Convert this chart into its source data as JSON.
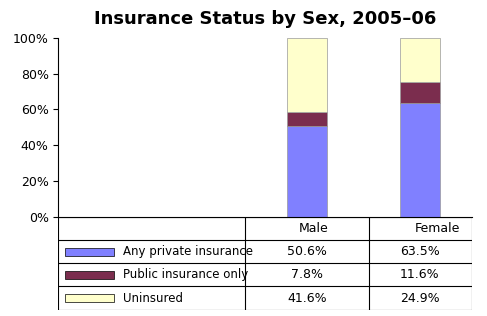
{
  "title": "Insurance Status by Sex, 2005–06",
  "categories": [
    "Male",
    "Female"
  ],
  "series": [
    {
      "label": "Any private insurance",
      "values": [
        50.6,
        63.5
      ],
      "color": "#8080FF"
    },
    {
      "label": "Public insurance only",
      "values": [
        7.8,
        11.6
      ],
      "color": "#7B2D4E"
    },
    {
      "label": "Uninsured",
      "values": [
        41.6,
        24.9
      ],
      "color": "#FFFFCC"
    }
  ],
  "table_rows": [
    {
      "label": "Uninsured",
      "male": "41.6%",
      "female": "24.9%",
      "color": "#FFFFCC"
    },
    {
      "label": "Public insurance only",
      "male": "7.8%",
      "female": "11.6%",
      "color": "#7B2D4E"
    },
    {
      "label": "Any private insurance",
      "male": "50.6%",
      "female": "63.5%",
      "color": "#8080FF"
    }
  ],
  "ylim": [
    0,
    100
  ],
  "yticks": [
    0,
    20,
    40,
    60,
    80,
    100
  ],
  "bar_width": 0.35,
  "background_color": "#FFFFFF",
  "title_fontsize": 13
}
